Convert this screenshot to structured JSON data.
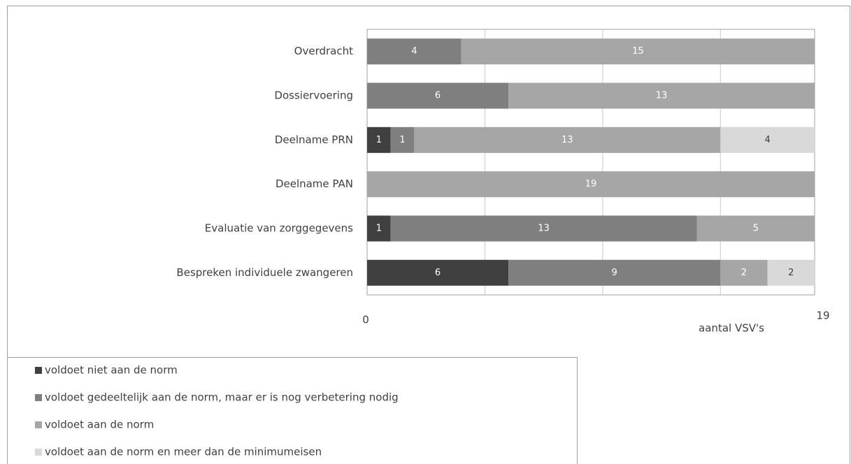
{
  "chart_data": {
    "type": "stacked_barh",
    "categories": [
      "Overdracht",
      "Dossiervoering",
      "Deelname PRN",
      "Deelname PAN",
      "Evaluatie van zorggegevens",
      "Bespreken individuele zwangeren"
    ],
    "series": [
      {
        "name": "voldoet niet aan de norm",
        "color": "#404040",
        "values": [
          0,
          0,
          1,
          0,
          1,
          6
        ]
      },
      {
        "name": "voldoet gedeeltelijk aan de norm, maar er is nog verbetering nodig",
        "color": "#7f7f7f",
        "values": [
          4,
          6,
          1,
          0,
          13,
          9
        ]
      },
      {
        "name": "voldoet aan de norm",
        "color": "#a6a6a6",
        "values": [
          15,
          13,
          13,
          19,
          5,
          2
        ]
      },
      {
        "name": "voldoet aan de norm en meer dan de minimumeisen",
        "color": "#d9d9d9",
        "values": [
          0,
          0,
          4,
          0,
          0,
          2
        ]
      }
    ],
    "xlim": [
      0,
      19
    ],
    "xticks": [
      0,
      19
    ],
    "x_gridlines": [
      5,
      10,
      15
    ],
    "xlabel": "aantal VSV's"
  }
}
